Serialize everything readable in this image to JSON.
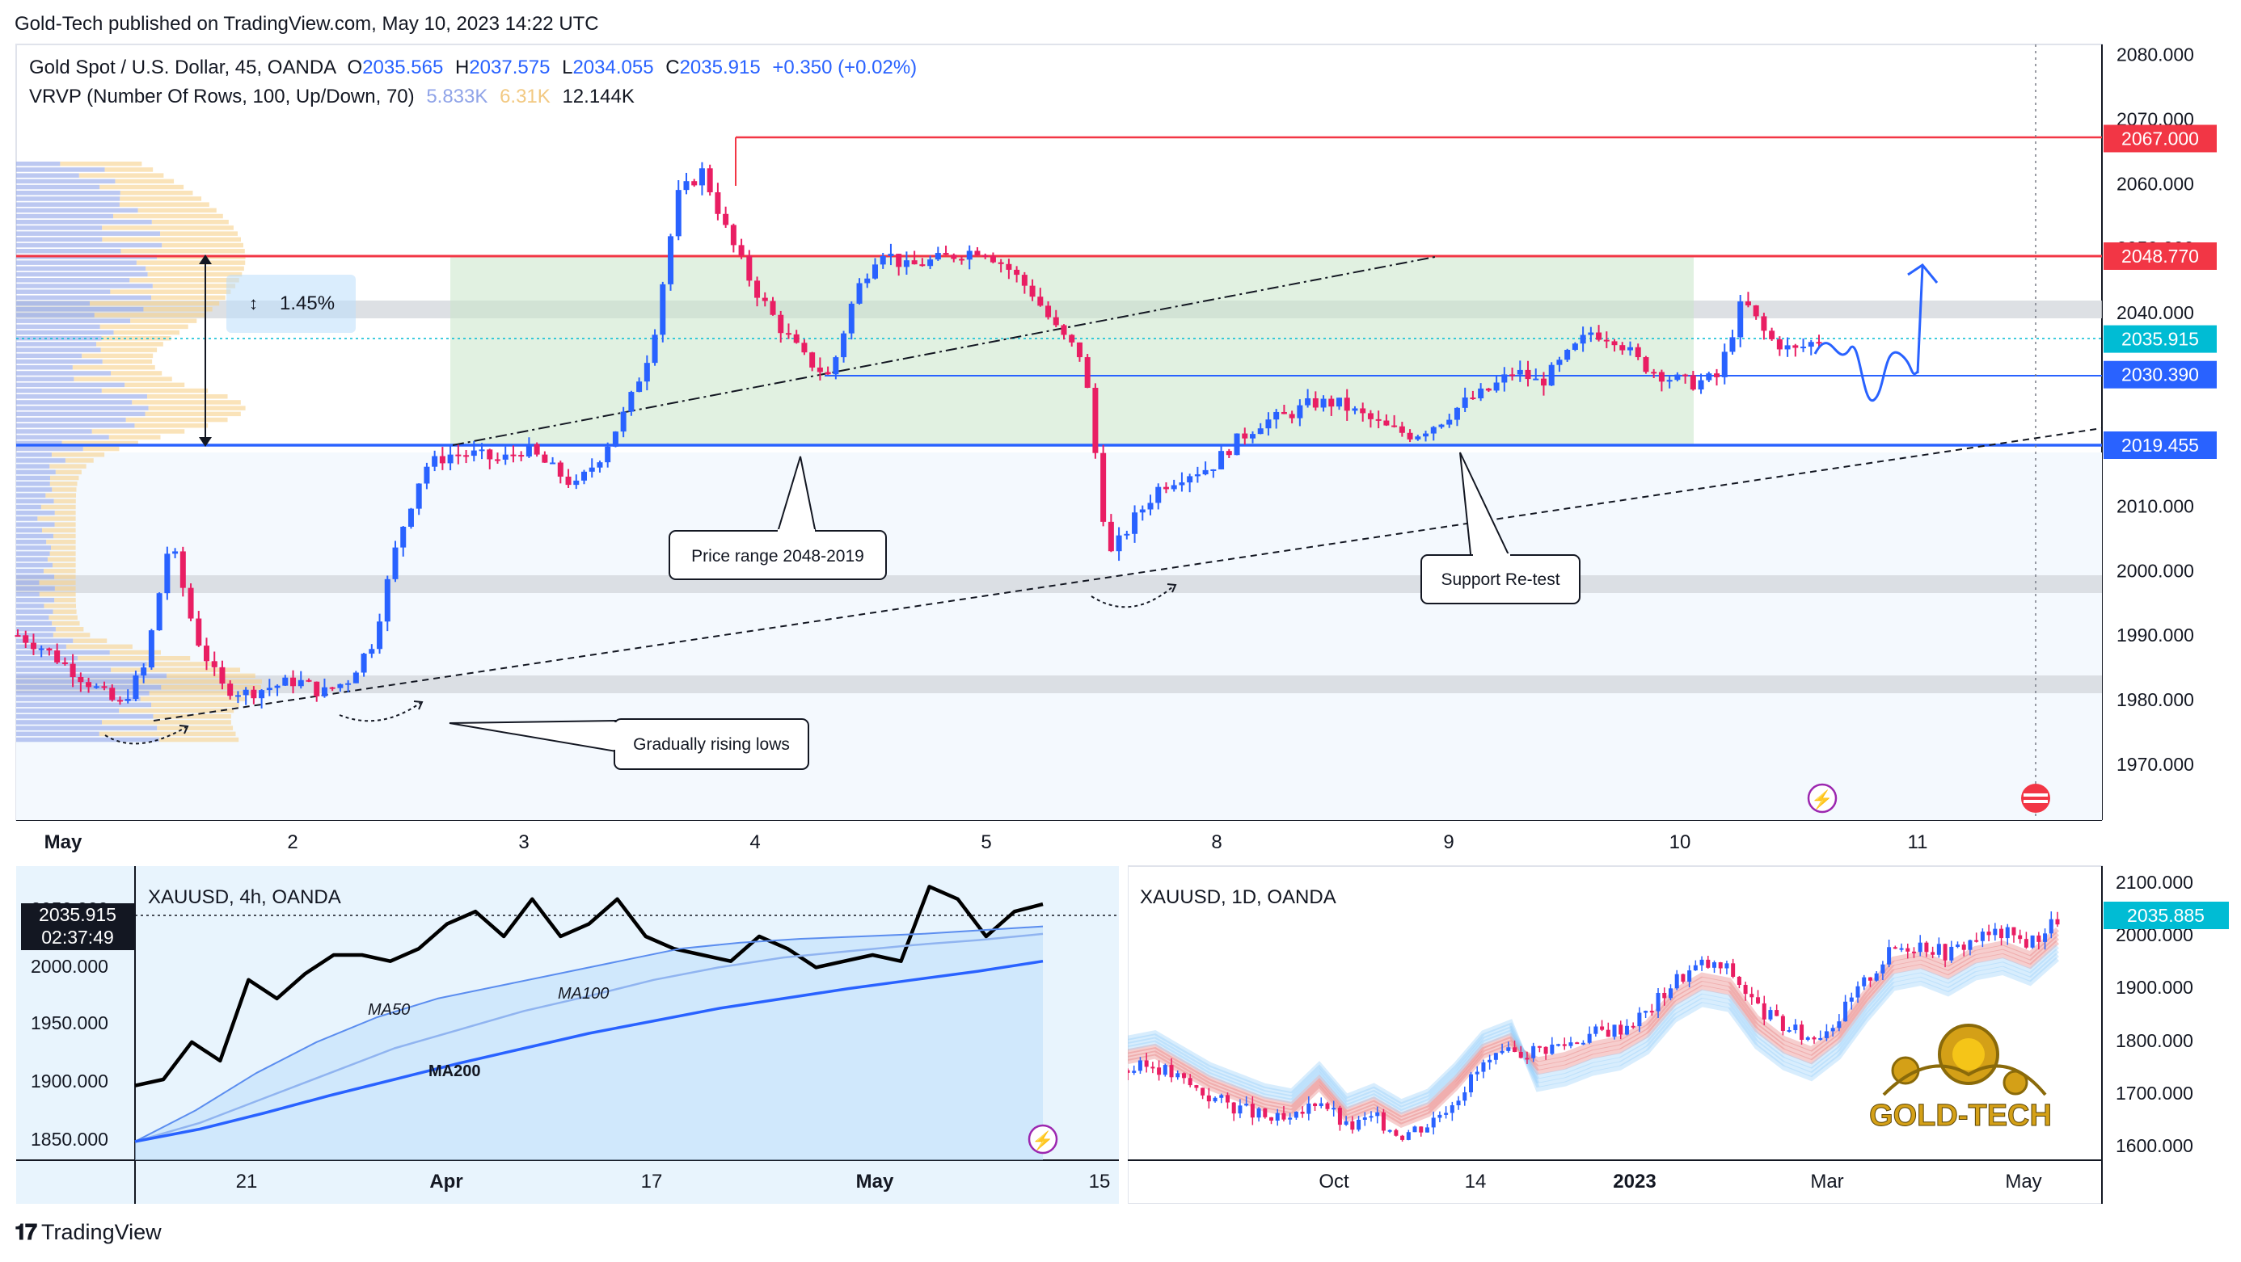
{
  "publish_line": "Gold-Tech published on TradingView.com, May 10, 2023 14:22 UTC",
  "footer_brand": "TradingView",
  "main": {
    "symbol": "Gold Spot / U.S. Dollar, 45, OANDA",
    "o_label": "O",
    "o_value": "2035.565",
    "h_label": "H",
    "h_value": "2037.575",
    "l_label": "L",
    "l_value": "2034.055",
    "c_label": "C",
    "c_value": "2035.915",
    "change": "+0.350 (+0.02%)",
    "vrvp_label": "VRVP (Number Of Rows, 100, Up/Down, 70)",
    "vrvp_up": "5.833K",
    "vrvp_down": "6.31K",
    "vrvp_total": "12.144K",
    "measure_label": "1.45%",
    "callouts": {
      "price_range": "Price range 2048-2019",
      "support_retest": "Support Re-test",
      "rising_lows": "Gradually rising lows"
    },
    "price_axis_ticks": [
      "2080.000",
      "2070.000",
      "2060.000",
      "2050.000",
      "2040.000",
      "2030.000",
      "2020.000",
      "2010.000",
      "2000.000",
      "1990.000",
      "1980.000",
      "1970.000"
    ],
    "price_tags": [
      {
        "label": "2067.000",
        "color": "#f23645"
      },
      {
        "label": "2048.770",
        "color": "#f23645"
      },
      {
        "label": "2035.915",
        "color": "#00bcd4"
      },
      {
        "label": "2030.390",
        "color": "#2962ff"
      },
      {
        "label": "2019.455",
        "color": "#2962ff"
      }
    ],
    "time_axis": [
      "May",
      "2",
      "3",
      "4",
      "5",
      "8",
      "9",
      "10",
      "11"
    ]
  },
  "sub_left": {
    "title": "XAUUSD, 4h, OANDA",
    "price_tag": "2035.915",
    "countdown": "02:37:49",
    "y_ticks": [
      "2050.000",
      "2000.000",
      "1950.000",
      "1900.000",
      "1850.000"
    ],
    "x_ticks": [
      "21",
      "Apr",
      "17",
      "May",
      "15"
    ],
    "ma_labels": [
      "MA50",
      "MA100",
      "MA200"
    ]
  },
  "sub_right": {
    "title": "XAUUSD, 1D, OANDA",
    "price_tag": "2035.885",
    "y_ticks": [
      "2100.000",
      "2000.000",
      "1900.000",
      "1800.000",
      "1700.000",
      "1600.000"
    ],
    "x_ticks": [
      "Oct",
      "14",
      "2023",
      "Mar",
      "May"
    ],
    "logo_text": "GOLD-TECH"
  },
  "colors": {
    "up": "#2962ff",
    "down": "#e91e63",
    "resistance": "#f23645",
    "support": "#2962ff",
    "range_fill": "#c8e6c9",
    "text": "#131722",
    "muted": "#787b86"
  },
  "chart_data": [
    {
      "type": "candlestick",
      "title": "Gold Spot / U.S. Dollar, 45, OANDA",
      "x": [
        "May 1",
        "May 2",
        "May 3",
        "May 4",
        "May 5",
        "May 8",
        "May 9",
        "May 10",
        "May 11"
      ],
      "ylim": [
        1962,
        2085
      ],
      "close_path": [
        1990,
        1988,
        1985,
        1982,
        1979,
        1985,
        2005,
        1990,
        1982,
        1981,
        1982,
        1983,
        1981,
        1983,
        1989,
        2005,
        2016,
        2018,
        2018,
        2017,
        2019,
        2016,
        2013,
        2018,
        2025,
        2035,
        2058,
        2062,
        2052,
        2044,
        2038,
        2033,
        2030,
        2043,
        2050,
        2047,
        2048,
        2049,
        2050,
        2047,
        2043,
        2037,
        2033,
        2002,
        2008,
        2013,
        2015,
        2016,
        2020,
        2023,
        2024,
        2026,
        2026,
        2024,
        2022,
        2021,
        2023,
        2026,
        2028,
        2031,
        2029,
        2033,
        2037,
        2036,
        2032,
        2030,
        2029,
        2030,
        2042,
        2036,
        2034,
        2035.9
      ],
      "series": [
        {
          "name": "Resistance",
          "value": 2048.77
        },
        {
          "name": "High",
          "value": 2067.0
        },
        {
          "name": "Mid level",
          "value": 2030.39
        },
        {
          "name": "Support",
          "value": 2019.455
        },
        {
          "name": "Last",
          "value": 2035.915
        }
      ],
      "annotations": [
        "Price range 2048-2019",
        "Support Re-test",
        "Gradually rising lows",
        "1.45%"
      ]
    },
    {
      "type": "line",
      "title": "XAUUSD, 4h, OANDA",
      "x_ticks": [
        "21",
        "Apr",
        "17",
        "May",
        "15"
      ],
      "ylim": [
        1830,
        2060
      ],
      "series": [
        {
          "name": "Price",
          "values": [
            1890,
            1895,
            1925,
            1910,
            1975,
            1960,
            1980,
            1995,
            1995,
            1990,
            2000,
            2020,
            2030,
            2010,
            2040,
            2010,
            2020,
            2040,
            2010,
            2000,
            1995,
            1990,
            2010,
            2000,
            1985,
            1990,
            1995,
            1990,
            2050,
            2040,
            2010,
            2030,
            2035.9
          ]
        },
        {
          "name": "MA50",
          "values": [
            1845,
            1870,
            1900,
            1925,
            1945,
            1960,
            1970,
            1980,
            1990,
            2000,
            2005,
            2008,
            2010,
            2012,
            2015,
            2018
          ]
        },
        {
          "name": "MA100",
          "values": [
            1845,
            1860,
            1880,
            1900,
            1920,
            1935,
            1950,
            1962,
            1975,
            1985,
            1993,
            1998,
            2003,
            2007,
            2012
          ]
        },
        {
          "name": "MA200",
          "values": [
            1845,
            1855,
            1868,
            1882,
            1895,
            1908,
            1920,
            1932,
            1942,
            1952,
            1960,
            1968,
            1975,
            1982,
            1990
          ]
        }
      ]
    },
    {
      "type": "line",
      "title": "XAUUSD, 1D, OANDA",
      "x_ticks": [
        "Oct",
        "14",
        "2023",
        "Mar",
        "May"
      ],
      "ylim": [
        1580,
        2120
      ],
      "series": [
        {
          "name": "Price",
          "values": [
            1750,
            1760,
            1730,
            1700,
            1680,
            1660,
            1650,
            1700,
            1640,
            1660,
            1630,
            1650,
            1700,
            1760,
            1780,
            1790,
            1800,
            1820,
            1830,
            1860,
            1920,
            1950,
            1940,
            1870,
            1830,
            1810,
            1850,
            1920,
            1980,
            1990,
            1970,
            2000,
            2010,
            1990,
            2035.9
          ]
        }
      ]
    }
  ]
}
